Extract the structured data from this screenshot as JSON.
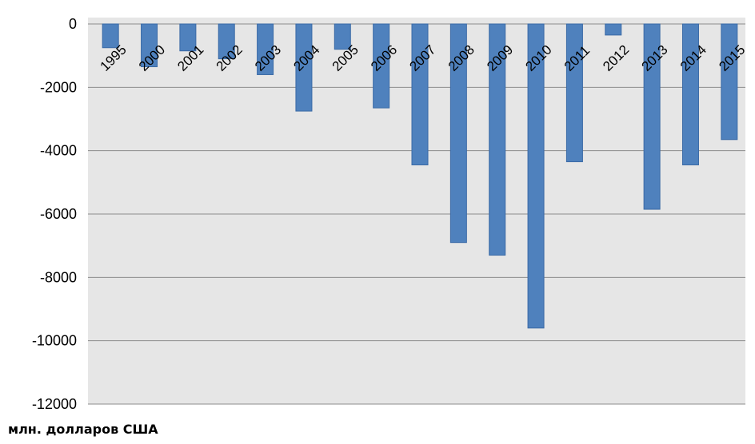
{
  "chart_data": {
    "type": "bar",
    "categories": [
      "1995",
      "2000",
      "2001",
      "2002",
      "2003",
      "2004",
      "2005",
      "2006",
      "2007",
      "2008",
      "2009",
      "2010",
      "2011",
      "2012",
      "2013",
      "2014",
      "2015"
    ],
    "values": [
      -750,
      -1350,
      -850,
      -1100,
      -1600,
      -2750,
      -800,
      -2650,
      -4450,
      -6900,
      -7300,
      -9600,
      -4350,
      -350,
      -5850,
      -4450,
      -3650
    ],
    "title": "",
    "xlabel": "",
    "ylabel": "млн. долларов США",
    "ylim": [
      -12000,
      0
    ],
    "yticks": [
      0,
      -2000,
      -4000,
      -6000,
      -8000,
      -10000,
      -12000
    ],
    "grid": true,
    "bar_color": "#4f81bd",
    "plot_background": "#e6e6e6"
  }
}
